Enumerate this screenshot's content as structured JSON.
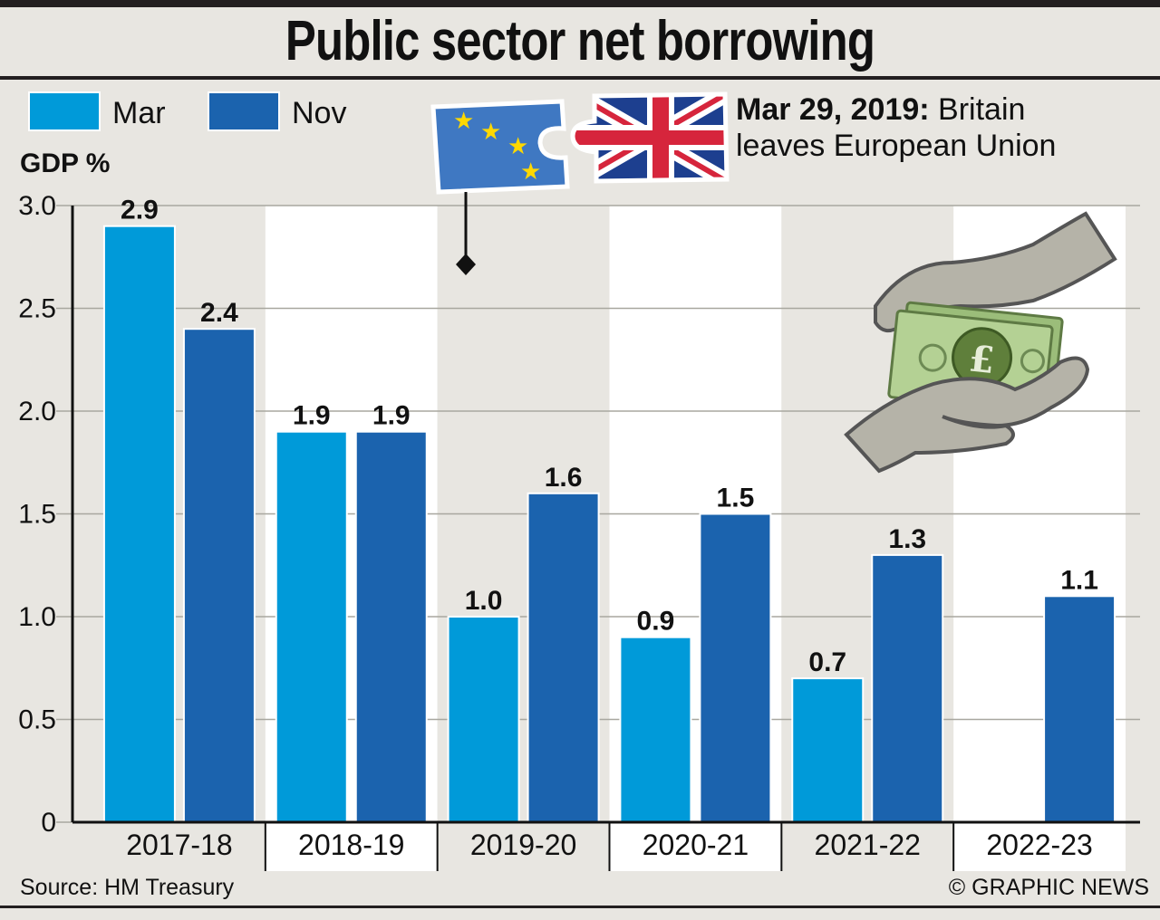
{
  "title": "Public sector net borrowing",
  "source": "Source: HM Treasury",
  "credit": "© GRAPHIC NEWS",
  "annotation": {
    "date": "Mar 29, 2019:",
    "text_line1": "Britain",
    "text_line2": "leaves European Union"
  },
  "colors": {
    "mar": "#009ad9",
    "nov": "#1b63ae",
    "band_light": "#e8e6e1",
    "band_dark": "#ffffff"
  },
  "chart_data": {
    "type": "bar",
    "ylabel": "GDP %",
    "ylim": [
      0,
      3.0
    ],
    "yticks": [
      "0",
      "0.5",
      "1.0",
      "1.5",
      "2.0",
      "2.5",
      "3.0"
    ],
    "categories": [
      "2017-18",
      "2018-19",
      "2019-20",
      "2020-21",
      "2021-22",
      "2022-23"
    ],
    "series": [
      {
        "name": "Mar",
        "values": [
          2.9,
          1.9,
          1.0,
          0.9,
          0.7,
          null
        ],
        "labels": [
          "2.9",
          "1.9",
          "1.0",
          "0.9",
          "0.7",
          ""
        ]
      },
      {
        "name": "Nov",
        "values": [
          2.4,
          1.9,
          1.6,
          1.5,
          1.3,
          1.1
        ],
        "labels": [
          "2.4",
          "1.9",
          "1.6",
          "1.5",
          "1.3",
          "1.1"
        ]
      }
    ],
    "legend_position": "top-left",
    "grid": true
  }
}
